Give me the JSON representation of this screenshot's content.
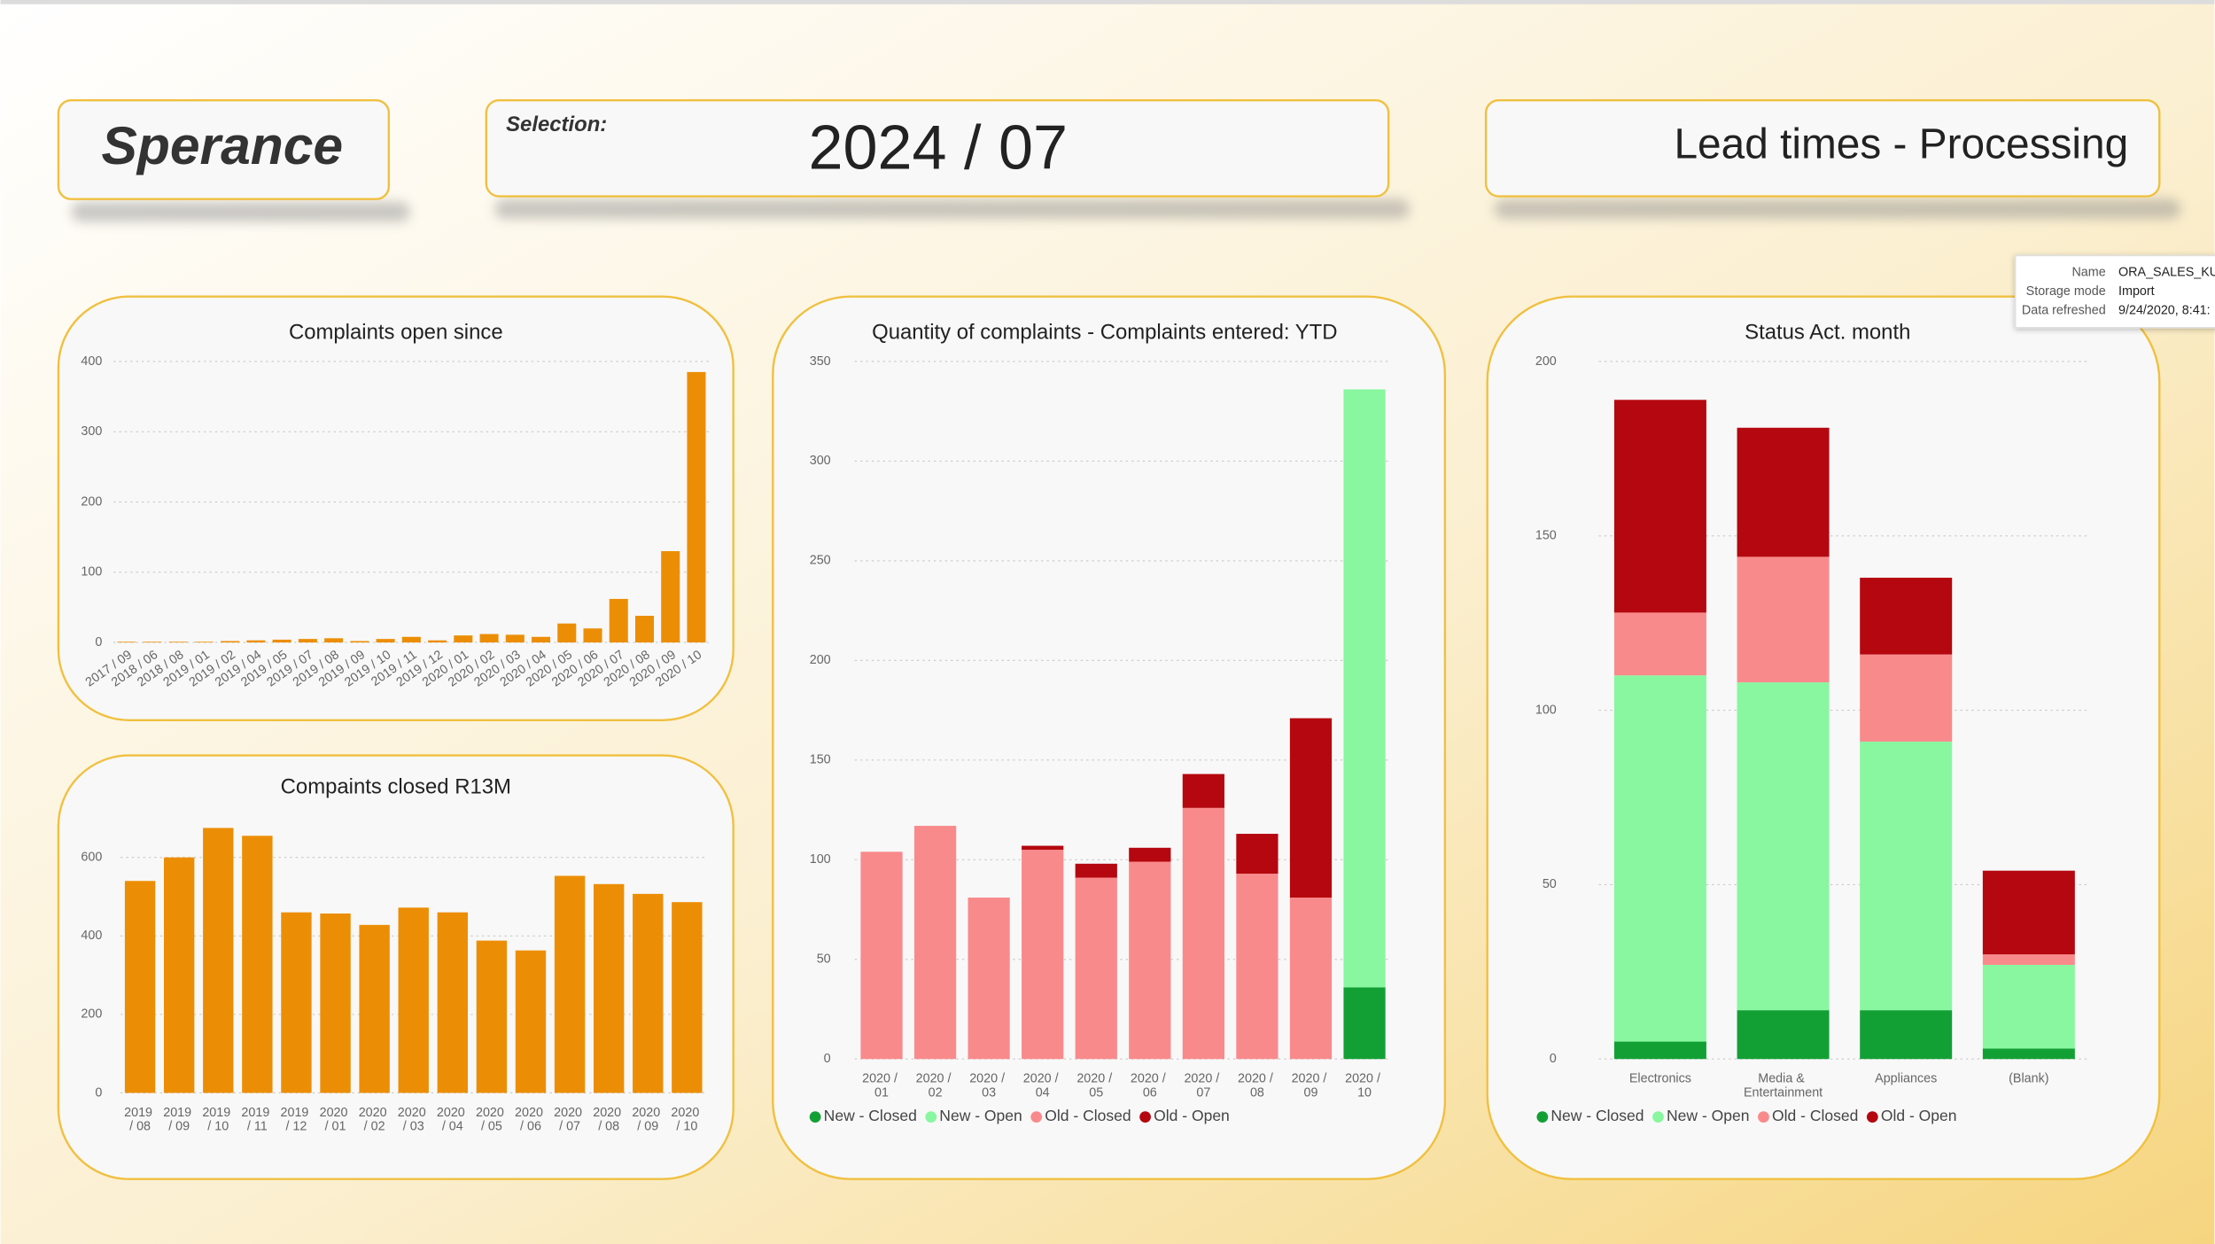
{
  "header": {
    "logo": "Sperance",
    "selection_label": "Selection:",
    "selection": "2024 / 07",
    "page_title": "Lead times - Processing"
  },
  "tooltip": {
    "rows": [
      [
        "Name",
        "ORA_SALES_KU_"
      ],
      [
        "Storage mode",
        "Import"
      ],
      [
        "Data refreshed",
        "9/24/2020, 8:41:"
      ]
    ]
  },
  "chart_data": [
    {
      "type": "bar",
      "title": "Complaints open since",
      "categories": [
        "2017 / 09",
        "2018 / 06",
        "2018 / 08",
        "2019 / 01",
        "2019 / 02",
        "2019 / 04",
        "2019 / 05",
        "2019 / 07",
        "2019 / 08",
        "2019 / 09",
        "2019 / 10",
        "2019 / 11",
        "2019 / 12",
        "2020 / 01",
        "2020 / 02",
        "2020 / 03",
        "2020 / 04",
        "2020 / 05",
        "2020 / 06",
        "2020 / 07",
        "2020 / 08",
        "2020 / 09",
        "2020 / 10"
      ],
      "values": [
        1,
        1,
        1,
        1,
        2,
        3,
        4,
        5,
        6,
        2,
        5,
        8,
        3,
        10,
        12,
        11,
        8,
        27,
        20,
        62,
        38,
        130,
        385
      ],
      "color": "#ec8e05",
      "ylim": [
        0,
        400
      ],
      "yticks": [
        0,
        100,
        200,
        300,
        400
      ],
      "grid": true
    },
    {
      "type": "bar",
      "title": "Compaints closed R13M",
      "categories": [
        "2019 / 08",
        "2019 / 09",
        "2019 / 10",
        "2019 / 11",
        "2019 / 12",
        "2020 / 01",
        "2020 / 02",
        "2020 / 03",
        "2020 / 04",
        "2020 / 05",
        "2020 / 06",
        "2020 / 07",
        "2020 / 08",
        "2020 / 09",
        "2020 / 10"
      ],
      "values": [
        540,
        600,
        675,
        655,
        460,
        457,
        428,
        472,
        460,
        388,
        363,
        553,
        532,
        507,
        486
      ],
      "color": "#ec8e05",
      "ylim": [
        0,
        700
      ],
      "yticks": [
        0,
        200,
        400,
        600
      ],
      "grid": true
    },
    {
      "type": "stacked_bar",
      "title": "Quantity of complaints - Complaints entered: YTD",
      "categories": [
        "2020 / 01",
        "2020 / 02",
        "2020 / 03",
        "2020 / 04",
        "2020 / 05",
        "2020 / 06",
        "2020 / 07",
        "2020 / 08",
        "2020 / 09",
        "2020 / 10"
      ],
      "series": [
        {
          "name": "New - Closed",
          "color": "#12a035",
          "values": [
            null,
            null,
            null,
            null,
            null,
            null,
            null,
            null,
            null,
            36
          ]
        },
        {
          "name": "New - Open",
          "color": "#88f7a0",
          "values": [
            null,
            null,
            null,
            null,
            null,
            null,
            null,
            null,
            null,
            300
          ]
        },
        {
          "name": "Old - Closed",
          "color": "#f98a8c",
          "values": [
            104,
            117,
            81,
            105,
            91,
            99,
            126,
            93,
            81,
            null
          ]
        },
        {
          "name": "Old - Open",
          "color": "#b5070f",
          "values": [
            null,
            null,
            null,
            2,
            7,
            7,
            17,
            20,
            90,
            null
          ]
        }
      ],
      "ylim": [
        0,
        350
      ],
      "yticks": [
        0,
        50,
        100,
        150,
        200,
        250,
        300,
        350
      ],
      "grid": true
    },
    {
      "type": "stacked_bar",
      "title": "Status Act. month",
      "categories": [
        "Electronics",
        "Media & Entertainment",
        "Appliances",
        "(Blank)"
      ],
      "series": [
        {
          "name": "New - Closed",
          "color": "#12a035",
          "values": [
            5,
            14,
            14,
            3
          ]
        },
        {
          "name": "New - Open",
          "color": "#88f7a0",
          "values": [
            105,
            94,
            77,
            24
          ]
        },
        {
          "name": "Old - Closed",
          "color": "#f98a8c",
          "values": [
            18,
            36,
            25,
            3
          ]
        },
        {
          "name": "Old - Open",
          "color": "#b5070f",
          "values": [
            61,
            37,
            22,
            24
          ]
        }
      ],
      "ylim": [
        0,
        200
      ],
      "yticks": [
        0,
        50,
        100,
        150,
        200
      ],
      "grid": true
    }
  ]
}
